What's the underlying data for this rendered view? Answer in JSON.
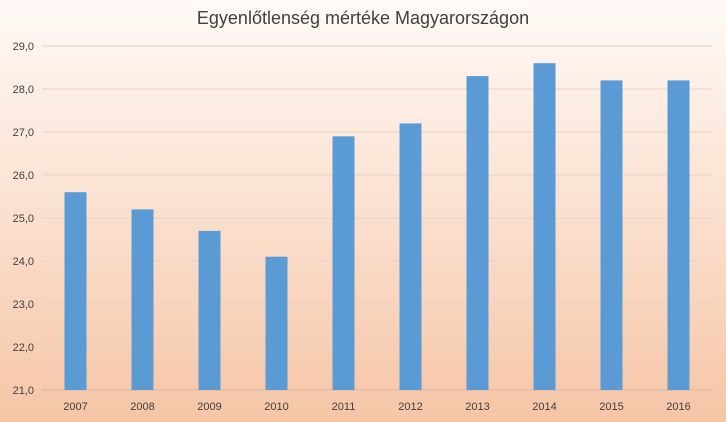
{
  "chart_data": {
    "type": "bar",
    "title": "Egyenlőtlenség mértéke Magyarországon",
    "xlabel": "",
    "ylabel": "",
    "categories": [
      "2007",
      "2008",
      "2009",
      "2010",
      "2011",
      "2012",
      "2013",
      "2014",
      "2015",
      "2016"
    ],
    "values": [
      25.6,
      25.2,
      24.7,
      24.1,
      26.9,
      27.2,
      28.3,
      28.6,
      28.2,
      28.2
    ],
    "ylim": [
      21,
      29
    ],
    "yticks": [
      "21,0",
      "22,0",
      "23,0",
      "24,0",
      "25,0",
      "26,0",
      "27,0",
      "28,0",
      "29,0"
    ],
    "grid": true,
    "legend": "none",
    "bar_color": "#5b9bd5"
  }
}
